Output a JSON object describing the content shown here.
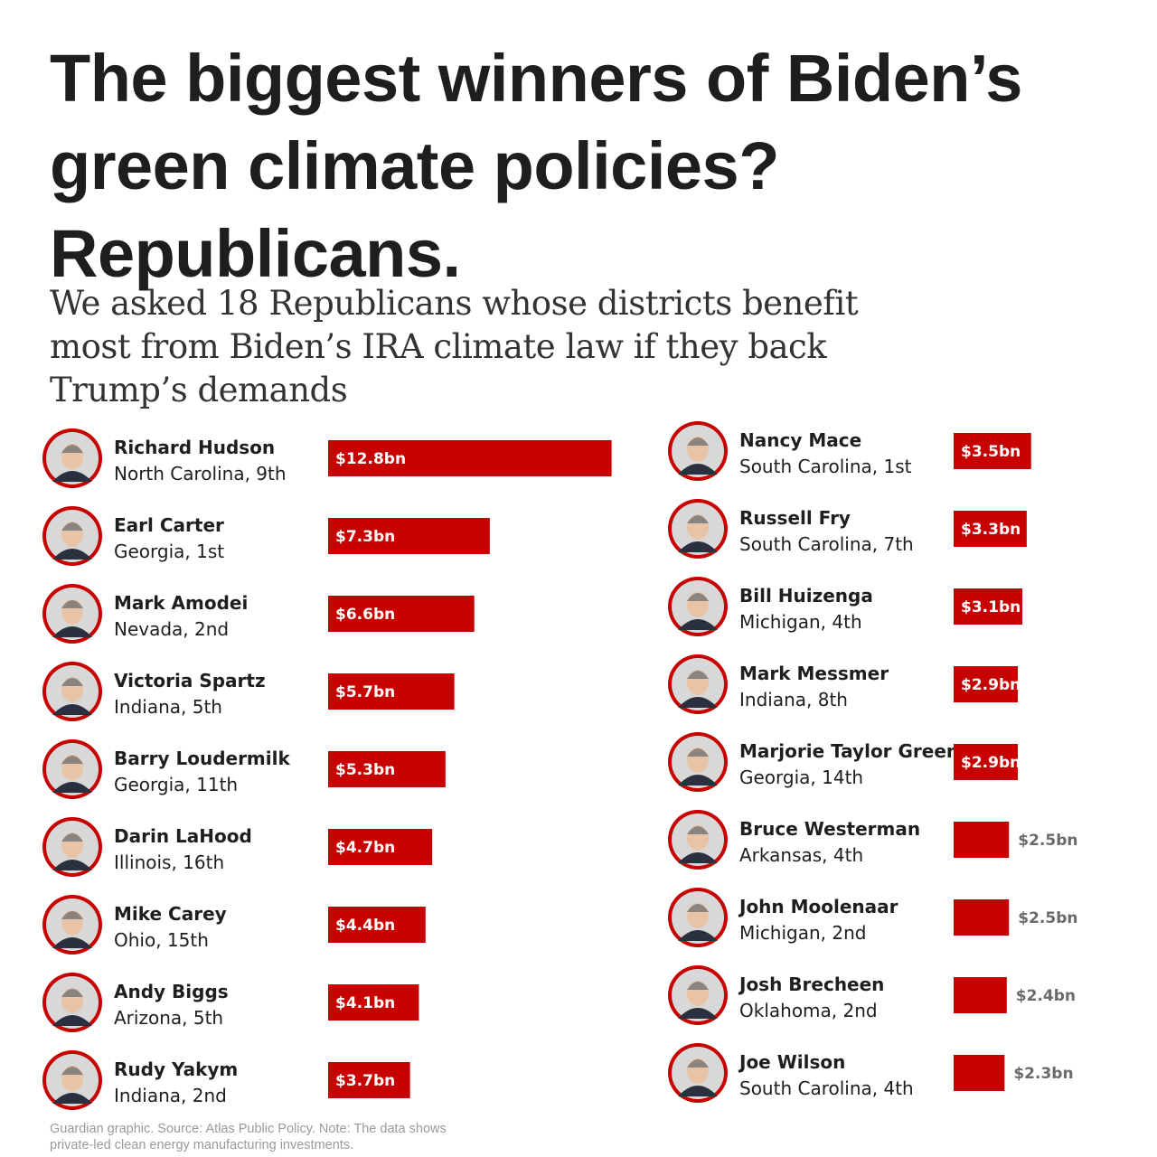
{
  "header": {
    "title": "The biggest winners of Biden’s green climate policies? Republicans.",
    "subtitle": "We asked 18 Republicans whose districts benefit most from Biden’s IRA climate law if they back Trump’s demands"
  },
  "footer": {
    "line1": "Guardian graphic. Source: Atlas Public Policy. Note: The data shows",
    "line2": "private-led clean energy manufacturing investments."
  },
  "colors": {
    "bar": "#c70000",
    "text": "#1e1e1e",
    "muted": "#9a9a9a"
  },
  "chart_data": {
    "type": "bar",
    "orientation": "horizontal",
    "unit": "bn",
    "columns": [
      {
        "rows": [
          {
            "name": "Richard Hudson",
            "district": "North Carolina, 9th",
            "value": 12.8,
            "label": "$12.8bn"
          },
          {
            "name": "Earl Carter",
            "district": "Georgia, 1st",
            "value": 7.3,
            "label": "$7.3bn"
          },
          {
            "name": "Mark Amodei",
            "district": "Nevada, 2nd",
            "value": 6.6,
            "label": "$6.6bn"
          },
          {
            "name": "Victoria Spartz",
            "district": "Indiana, 5th",
            "value": 5.7,
            "label": "$5.7bn"
          },
          {
            "name": "Barry Loudermilk",
            "district": "Georgia, 11th",
            "value": 5.3,
            "label": "$5.3bn"
          },
          {
            "name": "Darin LaHood",
            "district": "Illinois, 16th",
            "value": 4.7,
            "label": "$4.7bn"
          },
          {
            "name": "Mike Carey",
            "district": "Ohio, 15th",
            "value": 4.4,
            "label": "$4.4bn"
          },
          {
            "name": "Andy Biggs",
            "district": "Arizona, 5th",
            "value": 4.1,
            "label": "$4.1bn"
          },
          {
            "name": "Rudy Yakym",
            "district": "Indiana, 2nd",
            "value": 3.7,
            "label": "$3.7bn"
          }
        ]
      },
      {
        "rows": [
          {
            "name": "Nancy Mace",
            "district": "South Carolina, 1st",
            "value": 3.5,
            "label": "$3.5bn"
          },
          {
            "name": "Russell Fry",
            "district": "South Carolina, 7th",
            "value": 3.3,
            "label": "$3.3bn"
          },
          {
            "name": "Bill Huizenga",
            "district": "Michigan, 4th",
            "value": 3.1,
            "label": "$3.1bn"
          },
          {
            "name": "Mark Messmer",
            "district": "Indiana, 8th",
            "value": 2.9,
            "label": "$2.9bn"
          },
          {
            "name": "Marjorie Taylor Greene",
            "district": "Georgia, 14th",
            "value": 2.9,
            "label": "$2.9bn"
          },
          {
            "name": "Bruce Westerman",
            "district": "Arkansas, 4th",
            "value": 2.5,
            "label": "$2.5bn"
          },
          {
            "name": "John Moolenaar",
            "district": "Michigan, 2nd",
            "value": 2.5,
            "label": "$2.5bn"
          },
          {
            "name": "Josh Brecheen",
            "district": "Oklahoma, 2nd",
            "value": 2.4,
            "label": "$2.4bn"
          },
          {
            "name": "Joe Wilson",
            "district": "South Carolina, 4th",
            "value": 2.3,
            "label": "$2.3bn"
          }
        ]
      }
    ]
  }
}
